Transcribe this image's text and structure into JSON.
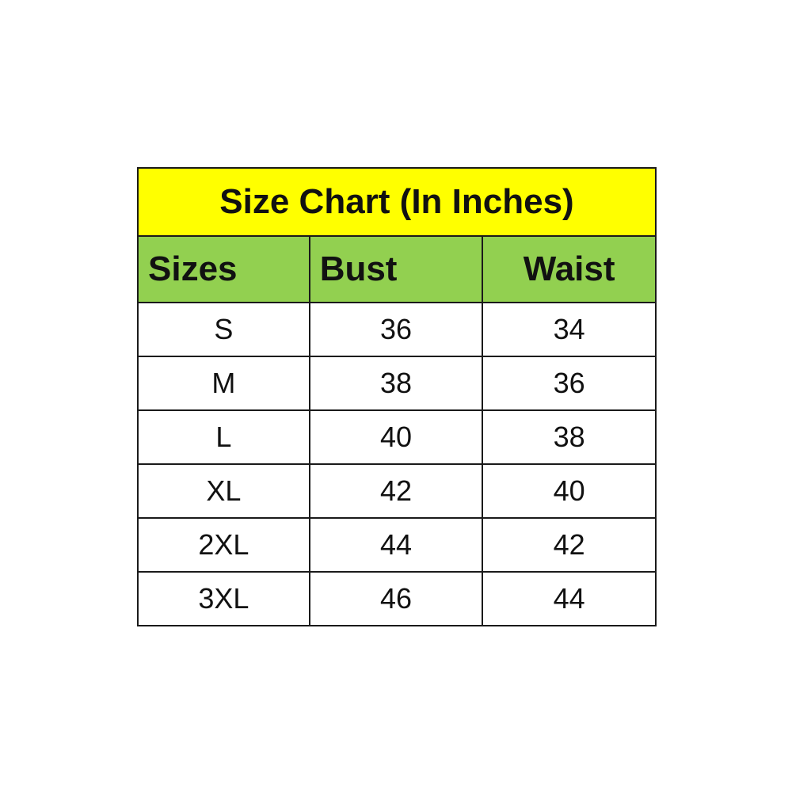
{
  "title": "Size Chart (In Inches)",
  "colors": {
    "title_bg": "#ffff00",
    "header_bg": "#92d050"
  },
  "headers": [
    "Sizes",
    "Bust",
    "Waist"
  ],
  "rows": [
    [
      "S",
      "36",
      "34"
    ],
    [
      "M",
      "38",
      "36"
    ],
    [
      "L",
      "40",
      "38"
    ],
    [
      "XL",
      "42",
      "40"
    ],
    [
      "2XL",
      "44",
      "42"
    ],
    [
      "3XL",
      "46",
      "44"
    ]
  ]
}
